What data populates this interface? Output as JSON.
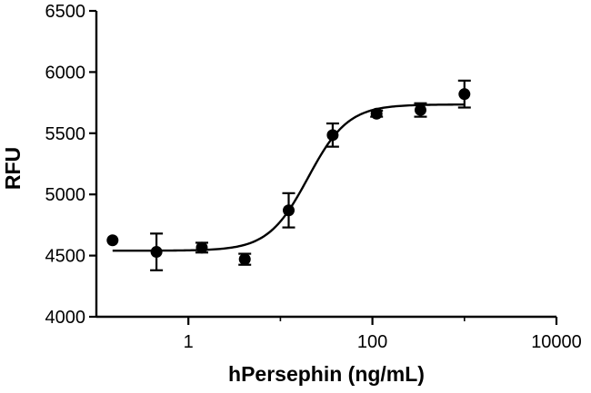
{
  "chart_data": {
    "type": "scatter",
    "title": "",
    "xlabel": "hPersephin (ng/mL)",
    "ylabel": "RFU",
    "xscale": "log",
    "xlim": [
      0.1,
      10000
    ],
    "ylim": [
      4000,
      6500
    ],
    "x_ticks": [
      1,
      100,
      10000
    ],
    "x_tick_labels": [
      "1",
      "100",
      "10000"
    ],
    "y_ticks": [
      4000,
      4500,
      5000,
      5500,
      6000,
      6500
    ],
    "y_tick_labels": [
      "4000",
      "4500",
      "5000",
      "5500",
      "6000",
      "6500"
    ],
    "grid": false,
    "legend": "none",
    "points": [
      {
        "x": 0.15,
        "y": 4625,
        "err": 0
      },
      {
        "x": 0.45,
        "y": 4530,
        "err": 150
      },
      {
        "x": 1.4,
        "y": 4565,
        "err": 40
      },
      {
        "x": 4.1,
        "y": 4470,
        "err": 45
      },
      {
        "x": 12.3,
        "y": 4870,
        "err": 140
      },
      {
        "x": 37,
        "y": 5485,
        "err": 95
      },
      {
        "x": 111,
        "y": 5660,
        "err": 25
      },
      {
        "x": 333,
        "y": 5690,
        "err": 55
      },
      {
        "x": 1000,
        "y": 5820,
        "err": 110
      }
    ],
    "fit": {
      "model": "4PL",
      "bottom": 4540,
      "top": 5735,
      "ec50": 20,
      "hill": 2,
      "x_range": [
        0.15,
        1000
      ]
    }
  }
}
